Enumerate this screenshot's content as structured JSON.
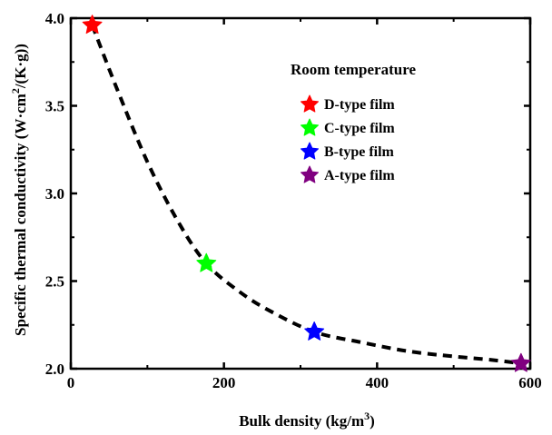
{
  "chart_data": {
    "type": "scatter",
    "xlabel_main": "Bulk density (kg/m",
    "xlabel_sup": "3",
    "xlabel_end": ")",
    "ylabel_main": "Specific thermal conductivity (W·cm",
    "ylabel_sup": "2",
    "ylabel_end": "/(K·g))",
    "xlim": [
      0,
      600
    ],
    "ylim": [
      2.0,
      4.0
    ],
    "x_ticks": [
      0,
      200,
      400,
      600
    ],
    "y_ticks": [
      "2.0",
      "2.5",
      "3.0",
      "3.5",
      "4.0"
    ],
    "grid": false,
    "legend_title": "Room temperature",
    "legend_position": "top-right",
    "series": [
      {
        "name": "D-type film",
        "color": "#ff0000",
        "x": 28,
        "y": 3.96
      },
      {
        "name": "C-type film",
        "color": "#00ff00",
        "x": 177,
        "y": 2.6
      },
      {
        "name": "B-type film",
        "color": "#0000ff",
        "x": 318,
        "y": 2.21
      },
      {
        "name": "A-type film",
        "color": "#800080",
        "x": 588,
        "y": 2.03
      }
    ],
    "fit_curve": {
      "style": "dashed",
      "color": "#000000",
      "x": [
        28,
        60,
        100,
        140,
        177,
        220,
        260,
        318,
        380,
        440,
        500,
        550,
        588
      ],
      "y": [
        3.96,
        3.6,
        3.18,
        2.84,
        2.6,
        2.44,
        2.33,
        2.21,
        2.15,
        2.1,
        2.07,
        2.05,
        2.03
      ]
    }
  }
}
